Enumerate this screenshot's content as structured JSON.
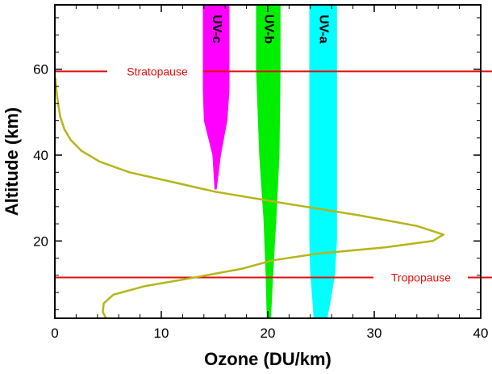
{
  "chart_data": {
    "type": "line",
    "xlabel": "Ozone (DU/km)",
    "ylabel": "Altitude (km)",
    "xlim": [
      0,
      40
    ],
    "ylim": [
      2,
      75
    ],
    "x_ticks": [
      0,
      10,
      20,
      30,
      40
    ],
    "y_ticks": [
      20,
      40,
      60
    ],
    "x_tick_labels": [
      "0",
      "10",
      "20",
      "30",
      "40"
    ],
    "y_tick_labels": [
      "20",
      "40",
      "60"
    ],
    "colors": {
      "profile": "#b5b519",
      "reference_lines": "#e01010",
      "uv_c": "#ff00ff",
      "uv_b": "#00ee00",
      "uv_a": "#00ffff",
      "axes": "#000000"
    },
    "series": [
      {
        "name": "Ozone profile",
        "points": [
          [
            4.8,
            2.0
          ],
          [
            4.5,
            3.5
          ],
          [
            4.6,
            5.5
          ],
          [
            5.5,
            7.5
          ],
          [
            8.5,
            9.5
          ],
          [
            12.0,
            11.0
          ],
          [
            17.5,
            13.5
          ],
          [
            20.5,
            15.5
          ],
          [
            24.5,
            17.0
          ],
          [
            31.0,
            18.5
          ],
          [
            35.5,
            20.0
          ],
          [
            36.5,
            21.5
          ],
          [
            34.0,
            23.5
          ],
          [
            28.5,
            26.0
          ],
          [
            21.0,
            29.0
          ],
          [
            15.0,
            31.5
          ],
          [
            11.5,
            33.5
          ],
          [
            7.0,
            36.0
          ],
          [
            4.2,
            38.5
          ],
          [
            2.5,
            41.0
          ],
          [
            1.5,
            43.5
          ],
          [
            0.9,
            46.0
          ],
          [
            0.5,
            49.0
          ],
          [
            0.3,
            52.0
          ],
          [
            0.15,
            55.0
          ],
          [
            0.05,
            58.0
          ]
        ]
      }
    ],
    "reference_lines": [
      {
        "name": "Stratopause",
        "altitude": 59.5
      },
      {
        "name": "Tropopause",
        "altitude": 11.5
      }
    ],
    "bands": [
      {
        "name": "UV-c",
        "profile": [
          [
            32.0,
            15.0,
            15.2
          ],
          [
            40.0,
            14.8,
            15.6
          ],
          [
            48.0,
            14.0,
            16.2
          ],
          [
            55.0,
            13.9,
            16.4
          ],
          [
            75.0,
            13.9,
            16.4
          ]
        ]
      },
      {
        "name": "UV-b",
        "profile": [
          [
            2.0,
            19.9,
            20.3
          ],
          [
            12.0,
            19.8,
            20.5
          ],
          [
            25.0,
            19.6,
            20.8
          ],
          [
            40.0,
            19.2,
            21.1
          ],
          [
            60.0,
            18.9,
            21.2
          ],
          [
            75.0,
            18.9,
            21.2
          ]
        ]
      },
      {
        "name": "UV-a",
        "profile": [
          [
            2.0,
            24.3,
            25.6
          ],
          [
            6.0,
            24.2,
            25.9
          ],
          [
            12.0,
            24.0,
            26.3
          ],
          [
            20.0,
            23.9,
            26.5
          ],
          [
            75.0,
            23.9,
            26.5
          ]
        ]
      }
    ]
  }
}
